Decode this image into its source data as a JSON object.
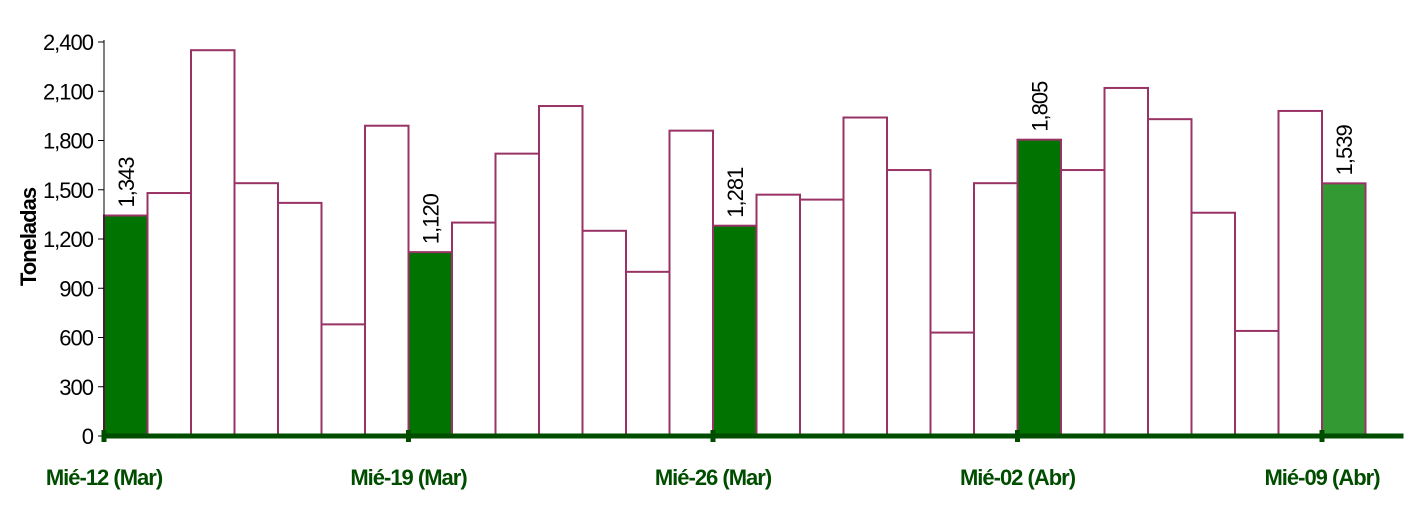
{
  "chart_data": {
    "type": "bar",
    "ylabel": "Toneladas",
    "xlabel": "",
    "ylim": [
      0,
      2400
    ],
    "yticks": [
      "0",
      "300",
      "600",
      "900",
      "1,200",
      "1,500",
      "1,800",
      "2,100",
      "2,400"
    ],
    "ytick_values": [
      0,
      300,
      600,
      900,
      1200,
      1500,
      1800,
      2100,
      2400
    ],
    "xtick_labels": [
      "Mié-12 (Mar)",
      "Mié-19 (Mar)",
      "Mié-26 (Mar)",
      "Mié-02 (Abr)",
      "Mié-09 (Abr)"
    ],
    "xtick_bar_index": [
      0,
      7,
      14,
      21,
      28
    ],
    "values": [
      1343,
      1480,
      2350,
      1540,
      1420,
      680,
      1890,
      1120,
      1300,
      1720,
      2010,
      1250,
      1000,
      1860,
      1281,
      1470,
      1440,
      1940,
      1620,
      630,
      1540,
      1805,
      1620,
      2120,
      1930,
      1360,
      640,
      1980,
      1539
    ],
    "highlighted_bars": [
      0,
      7,
      14,
      21,
      28
    ],
    "data_labels": [
      {
        "bar": 0,
        "text": "1,343"
      },
      {
        "bar": 7,
        "text": "1,120"
      },
      {
        "bar": 14,
        "text": "1,281"
      },
      {
        "bar": 21,
        "text": "1,805"
      },
      {
        "bar": 28,
        "text": "1,539"
      }
    ],
    "grid": false,
    "colors": {
      "bar_outline": "#993366",
      "bar_fill": "#ffffff",
      "highlight_fill": "#007300",
      "last_highlight_fill": "#339933",
      "axis": "#004d00",
      "xtick_text": "#004d00"
    }
  }
}
